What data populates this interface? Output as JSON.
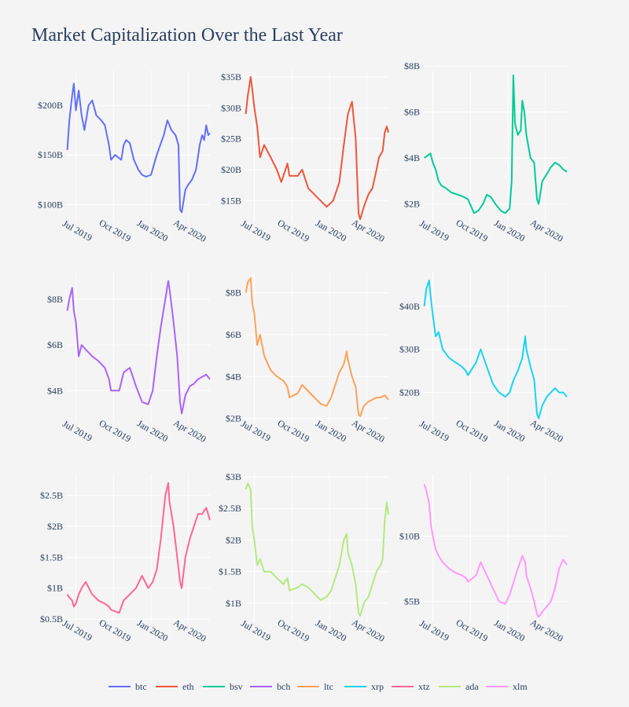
{
  "chart_data": {
    "type": "line",
    "title": "Market Capitalization Over the Last Year",
    "x_ticks": [
      "Jul 2019",
      "Oct 2019",
      "Jan 2020",
      "Apr 2020"
    ],
    "x_tick_dates": [
      "2019-07-01",
      "2019-10-01",
      "2020-01-01",
      "2020-04-01"
    ],
    "x_range": [
      "2019-06-07",
      "2020-05-24"
    ],
    "grid": true,
    "legend_position": "bottom",
    "panels": [
      {
        "name": "btc",
        "color": "#636efa",
        "ylim": [
          82,
          235
        ],
        "y_ticks": [
          {
            "v": 100,
            "label": "$100B"
          },
          {
            "v": 150,
            "label": "$150B"
          },
          {
            "v": 200,
            "label": "$200B"
          }
        ],
        "dates": [
          "2019-06-10",
          "2019-06-15",
          "2019-06-22",
          "2019-06-26",
          "2019-07-01",
          "2019-07-08",
          "2019-07-15",
          "2019-07-22",
          "2019-08-01",
          "2019-08-10",
          "2019-08-20",
          "2019-09-01",
          "2019-09-10",
          "2019-09-20",
          "2019-09-25",
          "2019-10-05",
          "2019-10-20",
          "2019-10-26",
          "2019-11-01",
          "2019-11-10",
          "2019-11-20",
          "2019-12-01",
          "2019-12-10",
          "2019-12-20",
          "2020-01-01",
          "2020-01-15",
          "2020-02-01",
          "2020-02-10",
          "2020-02-20",
          "2020-03-01",
          "2020-03-08",
          "2020-03-12",
          "2020-03-16",
          "2020-03-25",
          "2020-04-01",
          "2020-04-10",
          "2020-04-20",
          "2020-04-29",
          "2020-05-05",
          "2020-05-10",
          "2020-05-15",
          "2020-05-20",
          "2020-05-24"
        ],
        "values": [
          155,
          185,
          210,
          222,
          195,
          215,
          190,
          175,
          200,
          205,
          190,
          185,
          180,
          160,
          145,
          150,
          145,
          160,
          165,
          162,
          145,
          135,
          130,
          128,
          130,
          150,
          170,
          185,
          175,
          170,
          160,
          95,
          92,
          115,
          120,
          125,
          135,
          160,
          170,
          165,
          180,
          170,
          172
        ]
      },
      {
        "name": "eth",
        "color": "#ef553b",
        "ylim": [
          11.5,
          36
        ],
        "y_ticks": [
          {
            "v": 15,
            "label": "$15B"
          },
          {
            "v": 20,
            "label": "$20B"
          },
          {
            "v": 25,
            "label": "$25B"
          },
          {
            "v": 30,
            "label": "$30B"
          },
          {
            "v": 35,
            "label": "$35B"
          }
        ],
        "dates": [
          "2019-06-10",
          "2019-06-15",
          "2019-06-22",
          "2019-06-26",
          "2019-07-01",
          "2019-07-08",
          "2019-07-15",
          "2019-07-25",
          "2019-08-10",
          "2019-08-25",
          "2019-09-05",
          "2019-09-20",
          "2019-09-25",
          "2019-10-15",
          "2019-10-26",
          "2019-11-10",
          "2019-11-25",
          "2019-12-10",
          "2019-12-25",
          "2020-01-10",
          "2020-01-25",
          "2020-02-05",
          "2020-02-15",
          "2020-02-25",
          "2020-03-05",
          "2020-03-12",
          "2020-03-16",
          "2020-03-25",
          "2020-04-05",
          "2020-04-15",
          "2020-04-25",
          "2020-05-01",
          "2020-05-10",
          "2020-05-15",
          "2020-05-20",
          "2020-05-24"
        ],
        "values": [
          29,
          32,
          35,
          33,
          30,
          27,
          22,
          24,
          22,
          20,
          18,
          21,
          19,
          19,
          20,
          17,
          16,
          15,
          14,
          15,
          18,
          24,
          29,
          31,
          25,
          13,
          12,
          14,
          16,
          17,
          20,
          22,
          23,
          26,
          27,
          26
        ]
      },
      {
        "name": "bsv",
        "color": "#00cc96",
        "ylim": [
          1.2,
          7.8
        ],
        "y_ticks": [
          {
            "v": 2,
            "label": "$2B"
          },
          {
            "v": 4,
            "label": "$4B"
          },
          {
            "v": 6,
            "label": "$6B"
          },
          {
            "v": 8,
            "label": "$8B"
          }
        ],
        "dates": [
          "2019-06-10",
          "2019-06-18",
          "2019-06-25",
          "2019-07-01",
          "2019-07-08",
          "2019-07-15",
          "2019-07-22",
          "2019-08-01",
          "2019-08-15",
          "2019-09-01",
          "2019-09-15",
          "2019-09-25",
          "2019-10-10",
          "2019-10-20",
          "2019-11-01",
          "2019-11-10",
          "2019-11-20",
          "2019-12-01",
          "2019-12-15",
          "2019-12-25",
          "2020-01-05",
          "2020-01-10",
          "2020-01-14",
          "2020-01-18",
          "2020-01-25",
          "2020-02-01",
          "2020-02-05",
          "2020-02-10",
          "2020-02-15",
          "2020-02-25",
          "2020-03-05",
          "2020-03-12",
          "2020-03-16",
          "2020-03-25",
          "2020-04-05",
          "2020-04-15",
          "2020-04-25",
          "2020-05-05",
          "2020-05-15",
          "2020-05-24"
        ],
        "values": [
          4.0,
          4.1,
          4.2,
          3.8,
          3.5,
          3.0,
          2.8,
          2.7,
          2.5,
          2.4,
          2.3,
          2.2,
          1.6,
          1.7,
          2.0,
          2.4,
          2.3,
          2.0,
          1.7,
          1.6,
          1.8,
          3.0,
          7.6,
          5.5,
          5.0,
          5.2,
          6.5,
          6.0,
          5.0,
          4.0,
          3.8,
          2.2,
          2.0,
          3.0,
          3.3,
          3.6,
          3.8,
          3.7,
          3.5,
          3.4
        ]
      },
      {
        "name": "bch",
        "color": "#ab63fa",
        "ylim": [
          2.6,
          9.2
        ],
        "y_ticks": [
          {
            "v": 4,
            "label": "$4B"
          },
          {
            "v": 6,
            "label": "$6B"
          },
          {
            "v": 8,
            "label": "$8B"
          }
        ],
        "dates": [
          "2019-06-10",
          "2019-06-15",
          "2019-06-22",
          "2019-06-26",
          "2019-07-01",
          "2019-07-08",
          "2019-07-15",
          "2019-07-25",
          "2019-08-10",
          "2019-08-25",
          "2019-09-10",
          "2019-09-20",
          "2019-09-25",
          "2019-10-15",
          "2019-10-26",
          "2019-11-10",
          "2019-11-25",
          "2019-12-10",
          "2019-12-25",
          "2020-01-05",
          "2020-01-15",
          "2020-01-25",
          "2020-02-05",
          "2020-02-12",
          "2020-02-15",
          "2020-02-25",
          "2020-03-05",
          "2020-03-12",
          "2020-03-16",
          "2020-03-25",
          "2020-04-05",
          "2020-04-15",
          "2020-04-25",
          "2020-05-05",
          "2020-05-15",
          "2020-05-24"
        ],
        "values": [
          7.5,
          8.0,
          8.5,
          7.5,
          7.0,
          5.5,
          6.0,
          5.8,
          5.5,
          5.3,
          5.0,
          4.5,
          4.0,
          4.0,
          4.8,
          5.0,
          4.2,
          3.5,
          3.4,
          4.0,
          5.5,
          6.8,
          8.0,
          8.8,
          8.5,
          7.0,
          5.5,
          3.5,
          3.0,
          3.8,
          4.2,
          4.3,
          4.5,
          4.6,
          4.7,
          4.5
        ]
      },
      {
        "name": "ltc",
        "color": "#ffa15a",
        "ylim": [
          1.8,
          9.0
        ],
        "y_ticks": [
          {
            "v": 2,
            "label": "$2B"
          },
          {
            "v": 4,
            "label": "$4B"
          },
          {
            "v": 6,
            "label": "$6B"
          },
          {
            "v": 8,
            "label": "$8B"
          }
        ],
        "dates": [
          "2019-06-10",
          "2019-06-15",
          "2019-06-22",
          "2019-06-26",
          "2019-07-01",
          "2019-07-08",
          "2019-07-15",
          "2019-07-25",
          "2019-08-10",
          "2019-08-25",
          "2019-09-10",
          "2019-09-20",
          "2019-09-25",
          "2019-10-15",
          "2019-10-26",
          "2019-11-10",
          "2019-11-25",
          "2019-12-10",
          "2019-12-25",
          "2020-01-05",
          "2020-01-15",
          "2020-01-25",
          "2020-02-05",
          "2020-02-12",
          "2020-02-15",
          "2020-02-25",
          "2020-03-05",
          "2020-03-12",
          "2020-03-16",
          "2020-03-25",
          "2020-04-05",
          "2020-04-15",
          "2020-04-25",
          "2020-05-05",
          "2020-05-15",
          "2020-05-24"
        ],
        "values": [
          8.0,
          8.5,
          8.7,
          7.5,
          7.0,
          5.5,
          6.0,
          5.0,
          4.3,
          4.0,
          3.8,
          3.5,
          3.0,
          3.2,
          3.6,
          3.3,
          3.0,
          2.7,
          2.6,
          3.0,
          3.6,
          4.2,
          4.6,
          5.2,
          4.8,
          4.0,
          3.5,
          2.2,
          2.1,
          2.6,
          2.8,
          2.9,
          3.0,
          3.0,
          3.1,
          2.9
        ]
      },
      {
        "name": "xrp",
        "color": "#19d3f3",
        "ylim": [
          13,
          48
        ],
        "y_ticks": [
          {
            "v": 20,
            "label": "$20B"
          },
          {
            "v": 30,
            "label": "$30B"
          },
          {
            "v": 40,
            "label": "$40B"
          }
        ],
        "dates": [
          "2019-06-10",
          "2019-06-15",
          "2019-06-22",
          "2019-06-26",
          "2019-07-01",
          "2019-07-08",
          "2019-07-15",
          "2019-07-25",
          "2019-08-10",
          "2019-08-25",
          "2019-09-10",
          "2019-09-20",
          "2019-09-25",
          "2019-10-15",
          "2019-10-26",
          "2019-11-10",
          "2019-11-25",
          "2019-12-10",
          "2019-12-25",
          "2020-01-05",
          "2020-01-15",
          "2020-01-25",
          "2020-02-05",
          "2020-02-12",
          "2020-02-15",
          "2020-02-25",
          "2020-03-05",
          "2020-03-12",
          "2020-03-16",
          "2020-03-25",
          "2020-04-05",
          "2020-04-15",
          "2020-04-25",
          "2020-05-05",
          "2020-05-15",
          "2020-05-24"
        ],
        "values": [
          40,
          44,
          46,
          42,
          38,
          33,
          34,
          30,
          28,
          27,
          26,
          25,
          24,
          27,
          30,
          26,
          22,
          20,
          19,
          20,
          23,
          25,
          28,
          33,
          30,
          26,
          23,
          15,
          14,
          17,
          19,
          20,
          21,
          20,
          20,
          19
        ]
      },
      {
        "name": "xtz",
        "color": "#ff6692",
        "ylim": [
          0.45,
          2.85
        ],
        "y_ticks": [
          {
            "v": 0.5,
            "label": "$0.5B"
          },
          {
            "v": 1,
            "label": "$1B"
          },
          {
            "v": 1.5,
            "label": "$1.5B"
          },
          {
            "v": 2,
            "label": "$2B"
          },
          {
            "v": 2.5,
            "label": "$2.5B"
          }
        ],
        "dates": [
          "2019-06-10",
          "2019-06-15",
          "2019-06-22",
          "2019-06-26",
          "2019-07-01",
          "2019-07-08",
          "2019-07-15",
          "2019-07-25",
          "2019-08-10",
          "2019-08-25",
          "2019-09-10",
          "2019-09-20",
          "2019-09-25",
          "2019-10-15",
          "2019-10-26",
          "2019-11-10",
          "2019-11-25",
          "2019-12-10",
          "2019-12-25",
          "2020-01-05",
          "2020-01-15",
          "2020-01-25",
          "2020-02-05",
          "2020-02-12",
          "2020-02-15",
          "2020-02-25",
          "2020-03-05",
          "2020-03-12",
          "2020-03-16",
          "2020-03-25",
          "2020-04-05",
          "2020-04-15",
          "2020-04-25",
          "2020-05-05",
          "2020-05-15",
          "2020-05-24"
        ],
        "values": [
          0.9,
          0.85,
          0.8,
          0.7,
          0.75,
          0.9,
          1.0,
          1.1,
          0.9,
          0.8,
          0.75,
          0.7,
          0.65,
          0.6,
          0.8,
          0.9,
          1.0,
          1.2,
          1.0,
          1.1,
          1.3,
          1.8,
          2.5,
          2.7,
          2.4,
          2.0,
          1.5,
          1.1,
          1.0,
          1.5,
          1.8,
          2.0,
          2.2,
          2.2,
          2.3,
          2.1
        ]
      },
      {
        "name": "ada",
        "color": "#b6e880",
        "ylim": [
          0.7,
          3.05
        ],
        "y_ticks": [
          {
            "v": 1,
            "label": "$1B"
          },
          {
            "v": 1.5,
            "label": "$1.5B"
          },
          {
            "v": 2,
            "label": "$2B"
          },
          {
            "v": 2.5,
            "label": "$2.5B"
          },
          {
            "v": 3,
            "label": "$3B"
          }
        ],
        "dates": [
          "2019-06-10",
          "2019-06-15",
          "2019-06-22",
          "2019-06-26",
          "2019-07-01",
          "2019-07-08",
          "2019-07-15",
          "2019-07-25",
          "2019-08-10",
          "2019-08-25",
          "2019-09-10",
          "2019-09-20",
          "2019-09-25",
          "2019-10-15",
          "2019-10-26",
          "2019-11-10",
          "2019-11-25",
          "2019-12-10",
          "2019-12-25",
          "2020-01-05",
          "2020-01-15",
          "2020-01-25",
          "2020-02-05",
          "2020-02-12",
          "2020-02-15",
          "2020-02-25",
          "2020-03-05",
          "2020-03-12",
          "2020-03-16",
          "2020-03-25",
          "2020-04-05",
          "2020-04-15",
          "2020-04-25",
          "2020-05-05",
          "2020-05-10",
          "2020-05-15",
          "2020-05-20",
          "2020-05-24"
        ],
        "values": [
          2.8,
          2.9,
          2.8,
          2.2,
          2.0,
          1.6,
          1.7,
          1.5,
          1.5,
          1.4,
          1.3,
          1.4,
          1.2,
          1.25,
          1.3,
          1.25,
          1.15,
          1.05,
          1.1,
          1.2,
          1.4,
          1.6,
          2.0,
          2.1,
          1.8,
          1.6,
          1.3,
          0.85,
          0.8,
          1.0,
          1.1,
          1.3,
          1.5,
          1.6,
          1.7,
          2.3,
          2.6,
          2.4
        ]
      },
      {
        "name": "xlm",
        "color": "#ff97ff",
        "ylim": [
          3.4,
          14.8
        ],
        "y_ticks": [
          {
            "v": 5,
            "label": "$5B"
          },
          {
            "v": 10,
            "label": "$10B"
          }
        ],
        "dates": [
          "2019-06-10",
          "2019-06-15",
          "2019-06-22",
          "2019-06-26",
          "2019-07-01",
          "2019-07-08",
          "2019-07-15",
          "2019-07-25",
          "2019-08-10",
          "2019-08-25",
          "2019-09-10",
          "2019-09-20",
          "2019-09-25",
          "2019-10-15",
          "2019-10-26",
          "2019-11-10",
          "2019-11-25",
          "2019-12-10",
          "2019-12-25",
          "2020-01-05",
          "2020-01-15",
          "2020-01-25",
          "2020-02-05",
          "2020-02-12",
          "2020-02-15",
          "2020-02-25",
          "2020-03-05",
          "2020-03-12",
          "2020-03-16",
          "2020-03-25",
          "2020-04-05",
          "2020-04-15",
          "2020-04-25",
          "2020-05-05",
          "2020-05-15",
          "2020-05-24"
        ],
        "values": [
          14,
          13.5,
          12.5,
          11,
          10,
          9,
          8.5,
          8,
          7.5,
          7.2,
          7,
          6.8,
          6.5,
          7,
          8,
          7,
          6,
          5,
          4.8,
          5.5,
          6.5,
          7.5,
          8.5,
          8,
          7,
          6,
          5,
          4,
          3.8,
          4.2,
          4.6,
          5,
          6,
          7.5,
          8.2,
          7.8
        ]
      }
    ]
  }
}
